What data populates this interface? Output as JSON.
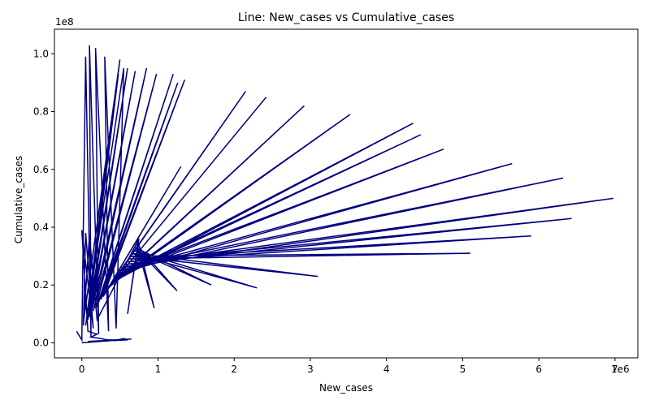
{
  "chart_data": {
    "type": "line",
    "title": "Line: New_cases vs Cumulative_cases",
    "xlabel": "New_cases",
    "ylabel": "Cumulative_cases",
    "x_offset_label": "1e6",
    "y_offset_label": "1e8",
    "xlim": [
      -0.36,
      7.3
    ],
    "ylim": [
      -0.052,
      1.085
    ],
    "x_ticks": [
      0,
      1,
      2,
      3,
      4,
      5,
      6,
      7
    ],
    "x_tick_labels": [
      "0",
      "1",
      "2",
      "3",
      "4",
      "5",
      "6",
      "7"
    ],
    "y_ticks": [
      0,
      0.2,
      0.4,
      0.6,
      0.8,
      1.0
    ],
    "y_tick_labels": [
      "0.0",
      "0.2",
      "0.4",
      "0.6",
      "0.8",
      "1.0"
    ],
    "grid": false,
    "legend": "none",
    "line_color": "#000080",
    "series": [
      {
        "values_note": "",
        "x": [
          -0.07,
          0.0,
          0.05,
          0.12,
          0.1,
          0.22,
          0.18,
          0.35,
          0.3,
          0.45,
          0.55,
          0.05,
          0.5,
          0.02,
          0.48,
          0.08,
          0.6,
          0.1,
          0.7,
          0.12,
          0.85,
          0.15,
          0.98,
          0.18,
          0.2,
          1.2,
          0.22,
          1.26,
          0.25,
          1.35,
          0.28,
          1.3,
          0.3,
          2.15,
          0.32,
          2.42,
          0.35,
          2.92,
          0.38,
          3.52,
          0.4,
          4.35,
          0.42,
          4.45,
          0.45,
          4.75,
          0.48,
          5.65,
          0.5,
          6.32,
          0.52,
          6.98,
          0.55,
          6.43,
          0.58,
          5.9,
          0.6,
          5.1,
          0.62,
          3.1,
          0.65,
          2.3,
          0.68,
          1.7,
          0.7,
          1.25,
          0.72,
          0.95,
          0.74,
          0.6,
          0.75,
          0.2,
          0.1,
          0.02,
          0.05,
          0.15,
          0.0,
          0.08,
          0.2,
          0.12,
          0.25,
          0.3,
          0.35,
          0.4,
          0.45,
          0.5,
          0.55,
          0.6,
          0.08,
          0.65,
          0.0
        ],
        "y": [
          0.04,
          0.01,
          0.99,
          0.02,
          1.03,
          0.03,
          1.02,
          0.04,
          0.99,
          0.05,
          0.95,
          0.06,
          0.98,
          0.07,
          0.93,
          0.08,
          0.95,
          0.09,
          0.94,
          0.1,
          0.95,
          0.11,
          0.93,
          0.12,
          0.13,
          0.93,
          0.14,
          0.9,
          0.15,
          0.91,
          0.16,
          0.61,
          0.17,
          0.87,
          0.18,
          0.85,
          0.19,
          0.82,
          0.2,
          0.79,
          0.21,
          0.76,
          0.22,
          0.72,
          0.23,
          0.67,
          0.24,
          0.62,
          0.25,
          0.57,
          0.26,
          0.5,
          0.27,
          0.43,
          0.28,
          0.37,
          0.29,
          0.31,
          0.3,
          0.23,
          0.31,
          0.19,
          0.32,
          0.2,
          0.33,
          0.18,
          0.34,
          0.12,
          0.35,
          0.1,
          0.36,
          0.08,
          0.37,
          0.06,
          0.38,
          0.05,
          0.39,
          0.04,
          0.03,
          0.02,
          0.015,
          0.012,
          0.01,
          0.01,
          0.008,
          0.012,
          0.015,
          0.01,
          0.005,
          0.013,
          0.0
        ]
      }
    ]
  }
}
